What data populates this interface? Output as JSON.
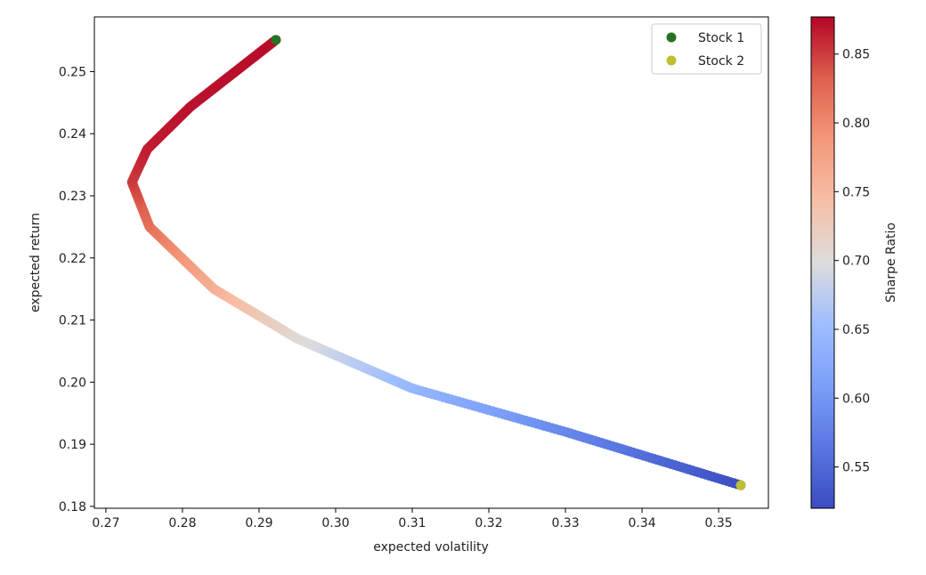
{
  "chart_data": {
    "type": "scatter",
    "title": "",
    "xlabel": "expected volatility",
    "ylabel": "expected return",
    "xlim": [
      0.2685,
      0.3565
    ],
    "ylim": [
      0.1797,
      0.2588
    ],
    "x_ticks": [
      "0.27",
      "0.28",
      "0.29",
      "0.30",
      "0.31",
      "0.32",
      "0.33",
      "0.34",
      "0.35"
    ],
    "y_ticks": [
      "0.18",
      "0.19",
      "0.20",
      "0.21",
      "0.22",
      "0.23",
      "0.24",
      "0.25"
    ],
    "grid": false,
    "frontier": {
      "description": "two-asset portfolio frontier, colored by Sharpe ratio",
      "return_range": [
        0.1834,
        0.2551
      ],
      "min_volatility_point": [
        0.2734,
        0.2322
      ],
      "sample_points": [
        {
          "vol": 0.2922,
          "ret": 0.2551,
          "sharpe": 0.873
        },
        {
          "vol": 0.281,
          "ret": 0.2443,
          "sharpe": 0.87
        },
        {
          "vol": 0.2754,
          "ret": 0.2375,
          "sharpe": 0.865
        },
        {
          "vol": 0.2734,
          "ret": 0.2322,
          "sharpe": 0.849
        },
        {
          "vol": 0.2757,
          "ret": 0.225,
          "sharpe": 0.816
        },
        {
          "vol": 0.2841,
          "ret": 0.215,
          "sharpe": 0.757
        },
        {
          "vol": 0.295,
          "ret": 0.207,
          "sharpe": 0.702
        },
        {
          "vol": 0.31,
          "ret": 0.199,
          "sharpe": 0.642
        },
        {
          "vol": 0.33,
          "ret": 0.192,
          "sharpe": 0.582
        },
        {
          "vol": 0.3529,
          "ret": 0.1834,
          "sharpe": 0.52
        }
      ]
    },
    "colorbar": {
      "label": "Sharpe Ratio",
      "range": [
        0.52,
        0.877
      ],
      "ticks": [
        "0.55",
        "0.60",
        "0.65",
        "0.70",
        "0.75",
        "0.80",
        "0.85"
      ],
      "colormap": "coolwarm"
    },
    "series": [
      {
        "name": "Stock 1",
        "x": 0.2922,
        "y": 0.2551,
        "color": "#267326"
      },
      {
        "name": "Stock 2",
        "x": 0.3529,
        "y": 0.1834,
        "color": "#bfbf33"
      }
    ],
    "legend_position": "top-right"
  }
}
